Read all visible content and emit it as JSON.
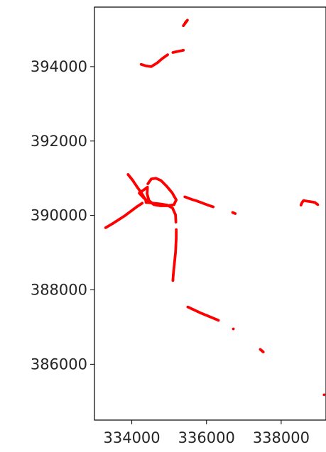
{
  "chart_data": {
    "type": "scatter",
    "title": "",
    "xlabel": "",
    "ylabel": "",
    "xlim": [
      333000,
      339200
    ],
    "ylim": [
      384500,
      395600
    ],
    "x_ticks": [
      334000,
      336000,
      338000
    ],
    "x_tick_labels": [
      "334000",
      "336000",
      "338000"
    ],
    "y_ticks": [
      386000,
      388000,
      390000,
      392000,
      394000
    ],
    "y_tick_labels": [
      "386000",
      "388000",
      "390000",
      "392000",
      "394000"
    ],
    "grid": false,
    "legend": "none",
    "series": [
      {
        "color": "#ff0000",
        "points": [
          [
            335430,
            395180
          ],
          [
            335490,
            395250
          ],
          [
            335380,
            395100
          ],
          [
            335100,
            394380
          ],
          [
            335240,
            394410
          ],
          [
            335380,
            394440
          ],
          [
            334960,
            394320
          ],
          [
            334820,
            394220
          ],
          [
            334680,
            394100
          ],
          [
            334520,
            394000
          ],
          [
            334380,
            394020
          ],
          [
            334250,
            394060
          ],
          [
            333300,
            389670
          ],
          [
            333470,
            389770
          ],
          [
            333640,
            389880
          ],
          [
            333810,
            389990
          ],
          [
            333970,
            390110
          ],
          [
            334130,
            390230
          ],
          [
            334280,
            390330
          ],
          [
            333900,
            391100
          ],
          [
            334020,
            390950
          ],
          [
            334140,
            390770
          ],
          [
            334260,
            390600
          ],
          [
            334370,
            390420
          ],
          [
            334380,
            390350
          ],
          [
            334570,
            390330
          ],
          [
            334760,
            390310
          ],
          [
            334940,
            390280
          ],
          [
            335090,
            390200
          ],
          [
            335170,
            390020
          ],
          [
            335180,
            389820
          ],
          [
            334430,
            390850
          ],
          [
            334520,
            390980
          ],
          [
            334640,
            391000
          ],
          [
            334780,
            390940
          ],
          [
            334930,
            390790
          ],
          [
            335080,
            390610
          ],
          [
            335190,
            390420
          ],
          [
            335130,
            390290
          ],
          [
            334950,
            390260
          ],
          [
            334760,
            390260
          ],
          [
            334590,
            390290
          ],
          [
            334460,
            390400
          ],
          [
            334410,
            390580
          ],
          [
            334420,
            390760
          ],
          [
            334200,
            390600
          ],
          [
            334320,
            390470
          ],
          [
            334440,
            390380
          ],
          [
            335190,
            389620
          ],
          [
            335190,
            389400
          ],
          [
            335180,
            389200
          ],
          [
            335170,
            389000
          ],
          [
            335150,
            388800
          ],
          [
            335130,
            388600
          ],
          [
            335110,
            388400
          ],
          [
            335100,
            388250
          ],
          [
            335420,
            390500
          ],
          [
            335580,
            390440
          ],
          [
            335740,
            390390
          ],
          [
            335900,
            390330
          ],
          [
            336060,
            390270
          ],
          [
            336180,
            390230
          ],
          [
            336700,
            390080
          ],
          [
            336770,
            390050
          ],
          [
            335500,
            387540
          ],
          [
            335670,
            387460
          ],
          [
            335840,
            387380
          ],
          [
            336010,
            387310
          ],
          [
            336180,
            387240
          ],
          [
            336320,
            387180
          ],
          [
            336720,
            386950
          ],
          [
            337440,
            386400
          ],
          [
            337520,
            386330
          ],
          [
            338530,
            390280
          ],
          [
            338560,
            390350
          ],
          [
            338600,
            390400
          ],
          [
            338900,
            390350
          ],
          [
            338980,
            390290
          ],
          [
            339150,
            385180
          ]
        ]
      }
    ]
  }
}
